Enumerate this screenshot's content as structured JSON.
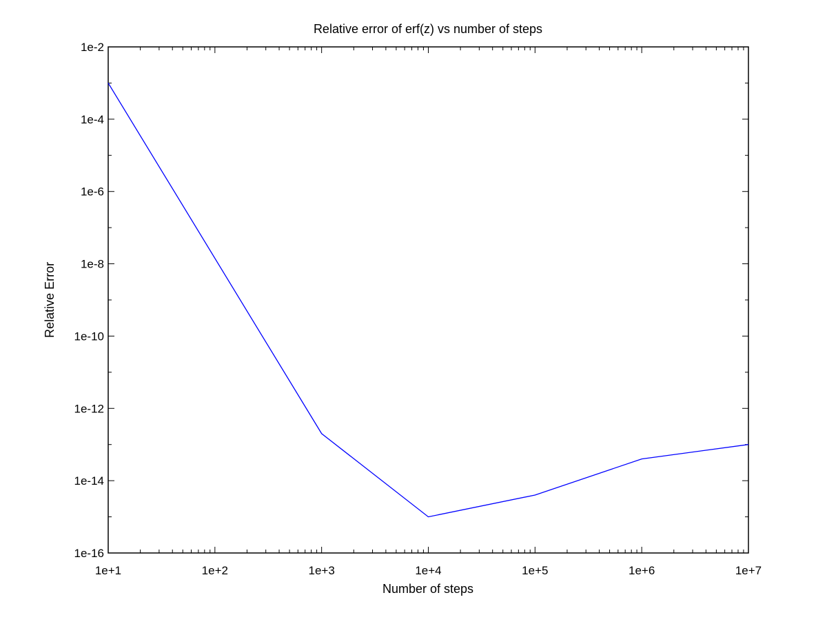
{
  "chart_data": {
    "type": "line",
    "title": "Relative error of erf(z) vs number of steps",
    "xlabel": "Number of steps",
    "ylabel": "Relative Error",
    "x_scale": "log",
    "y_scale": "log",
    "xlim": [
      10,
      10000000
    ],
    "ylim": [
      1e-16,
      0.01
    ],
    "grid": false,
    "x_tick_labels": [
      "1e+1",
      "1e+2",
      "1e+3",
      "1e+4",
      "1e+5",
      "1e+6",
      "1e+7"
    ],
    "y_tick_labels": [
      "1e-16",
      "1e-14",
      "1e-12",
      "1e-10",
      "1e-8",
      "1e-6",
      "1e-4",
      "1e-2"
    ],
    "series": [
      {
        "color": "#0000ff",
        "x": [
          10,
          1000,
          10000,
          100000,
          1000000,
          10000000
        ],
        "y": [
          0.001,
          2e-13,
          1e-15,
          4e-15,
          4e-14,
          1e-13
        ]
      }
    ]
  }
}
